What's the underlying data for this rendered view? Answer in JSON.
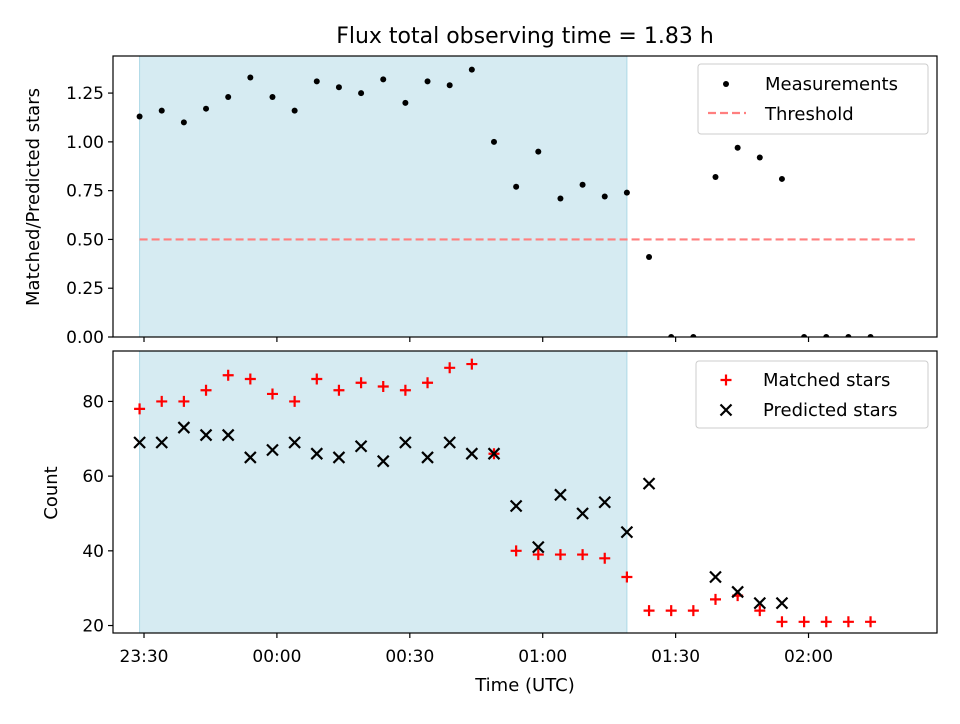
{
  "chart_data": [
    {
      "type": "scatter",
      "title": "Flux total observing time = 1.83 h",
      "xlabel": "",
      "ylabel": "Matched/Predicted stars",
      "xlim": [
        "23:23",
        "02:29"
      ],
      "ylim": [
        0,
        1.44
      ],
      "yticks": [
        "0.00",
        "0.25",
        "0.50",
        "0.75",
        "1.00",
        "1.25"
      ],
      "shaded_interval": [
        "23:29",
        "01:19"
      ],
      "shaded_color": "#add8e6",
      "threshold": {
        "name": "Threshold",
        "y": 0.5,
        "x_range": [
          "23:29",
          "02:24"
        ],
        "color": "#ff7f7f"
      },
      "series": [
        {
          "name": "Measurements",
          "color": "#000000",
          "x": [
            "23:29",
            "23:34",
            "23:39",
            "23:44",
            "23:49",
            "23:54",
            "23:59",
            "00:04",
            "00:09",
            "00:14",
            "00:19",
            "00:24",
            "00:29",
            "00:34",
            "00:39",
            "00:44",
            "00:49",
            "00:54",
            "00:59",
            "01:04",
            "01:09",
            "01:14",
            "01:19",
            "01:24",
            "01:29",
            "01:34",
            "01:39",
            "01:44",
            "01:49",
            "01:54",
            "01:59",
            "02:04",
            "02:09",
            "02:14"
          ],
          "y": [
            1.13,
            1.16,
            1.1,
            1.17,
            1.23,
            1.33,
            1.23,
            1.16,
            1.31,
            1.28,
            1.25,
            1.32,
            1.2,
            1.31,
            1.29,
            1.37,
            1.0,
            0.77,
            0.95,
            0.71,
            0.78,
            0.72,
            0.74,
            0.41,
            0.0,
            0.0,
            0.82,
            0.97,
            0.92,
            0.81,
            0.0,
            0.0,
            0.0,
            0.0
          ]
        }
      ],
      "legend_position": "upper-right"
    },
    {
      "type": "scatter",
      "title": "",
      "xlabel": "Time (UTC)",
      "ylabel": "Count",
      "xlim": [
        "23:23",
        "02:29"
      ],
      "ylim": [
        18,
        93.5
      ],
      "yticks": [
        "20",
        "40",
        "60",
        "80"
      ],
      "xticks": [
        "23:30",
        "00:00",
        "00:30",
        "01:00",
        "01:30",
        "02:00"
      ],
      "shaded_interval": [
        "23:29",
        "01:19"
      ],
      "shaded_color": "#add8e6",
      "series": [
        {
          "name": "Matched stars",
          "marker": "+",
          "color": "#ff0000",
          "x": [
            "23:29",
            "23:34",
            "23:39",
            "23:44",
            "23:49",
            "23:54",
            "23:59",
            "00:04",
            "00:09",
            "00:14",
            "00:19",
            "00:24",
            "00:29",
            "00:34",
            "00:39",
            "00:44",
            "00:49",
            "00:54",
            "00:59",
            "01:04",
            "01:09",
            "01:14",
            "01:19",
            "01:24",
            "01:29",
            "01:34",
            "01:39",
            "01:44",
            "01:49",
            "01:54",
            "01:59",
            "02:04",
            "02:09",
            "02:14"
          ],
          "y": [
            78,
            80,
            80,
            83,
            87,
            86,
            82,
            80,
            86,
            83,
            85,
            84,
            83,
            85,
            89,
            90,
            66,
            40,
            39,
            39,
            39,
            38,
            33,
            24,
            24,
            24,
            27,
            28,
            24,
            21,
            21,
            21,
            21,
            21
          ]
        },
        {
          "name": "Predicted stars",
          "marker": "x",
          "color": "#000000",
          "x": [
            "23:29",
            "23:34",
            "23:39",
            "23:44",
            "23:49",
            "23:54",
            "23:59",
            "00:04",
            "00:09",
            "00:14",
            "00:19",
            "00:24",
            "00:29",
            "00:34",
            "00:39",
            "00:44",
            "00:49",
            "00:54",
            "00:59",
            "01:04",
            "01:09",
            "01:14",
            "01:19",
            "01:24",
            "01:39",
            "01:44",
            "01:49",
            "01:54"
          ],
          "y": [
            69,
            69,
            73,
            71,
            71,
            65,
            67,
            69,
            66,
            65,
            68,
            64,
            69,
            65,
            69,
            66,
            66,
            52,
            41,
            55,
            50,
            53,
            45,
            58,
            33,
            29,
            26,
            26
          ]
        }
      ],
      "legend_position": "upper-right"
    }
  ]
}
